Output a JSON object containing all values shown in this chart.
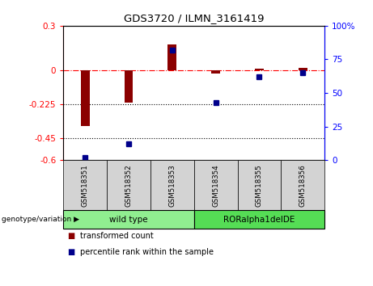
{
  "title": "GDS3720 / ILMN_3161419",
  "samples": [
    "GSM518351",
    "GSM518352",
    "GSM518353",
    "GSM518354",
    "GSM518355",
    "GSM518356"
  ],
  "transformed_count": [
    -0.37,
    -0.215,
    0.175,
    -0.022,
    0.015,
    0.018
  ],
  "percentile_rank": [
    2,
    12,
    82,
    43,
    62,
    65
  ],
  "ylim_left": [
    -0.6,
    0.3
  ],
  "ylim_right": [
    0,
    100
  ],
  "yticks_left": [
    0.3,
    0.0,
    -0.225,
    -0.45,
    -0.6
  ],
  "yticks_right": [
    100,
    75,
    50,
    25,
    0
  ],
  "dotted_lines": [
    -0.225,
    -0.45
  ],
  "group_info": [
    {
      "label": "wild type",
      "start": 0,
      "end": 3,
      "color": "#90EE90"
    },
    {
      "label": "RORalpha1delDE",
      "start": 3,
      "end": 6,
      "color": "#55DD55"
    }
  ],
  "bar_color": "#8B0000",
  "dot_color": "#00008B",
  "bg_color": "#ffffff",
  "plot_bg": "#ffffff",
  "sample_box_color": "#d3d3d3",
  "genotype_label": "genotype/variation"
}
